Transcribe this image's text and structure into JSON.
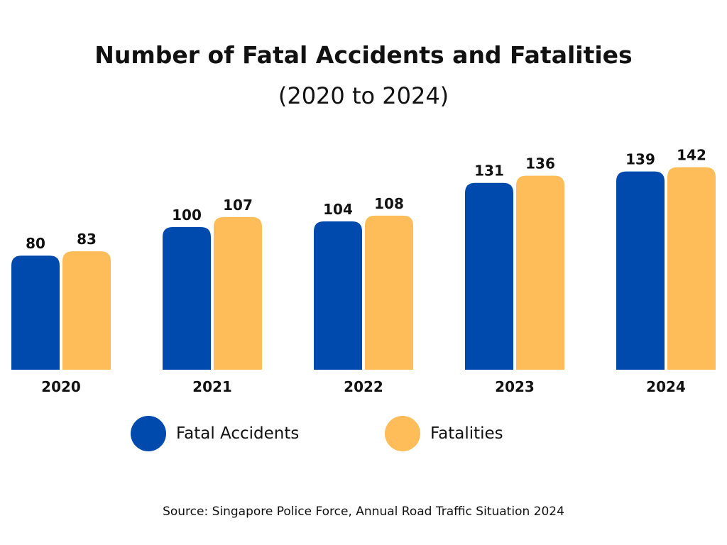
{
  "chart_data": {
    "type": "bar",
    "title": "Number of Fatal Accidents and Fatalities",
    "subtitle": "(2020 to 2024)",
    "categories": [
      "2020",
      "2021",
      "2022",
      "2023",
      "2024"
    ],
    "series": [
      {
        "name": "Fatal Accidents",
        "color": "#004AAD",
        "values": [
          80,
          100,
          104,
          131,
          139
        ]
      },
      {
        "name": "Fatalities",
        "color": "#FFBD59",
        "values": [
          83,
          107,
          108,
          136,
          142
        ]
      }
    ],
    "xlabel": "",
    "ylabel": "",
    "ylim": [
      0,
      150
    ],
    "grid": false,
    "legend_position": "bottom",
    "source": "Source: Singapore Police Force, Annual Road Traffic Situation 2024"
  }
}
